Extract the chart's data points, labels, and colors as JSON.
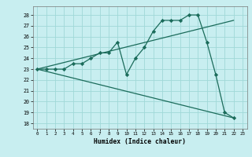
{
  "title": "",
  "xlabel": "Humidex (Indice chaleur)",
  "bg_color": "#c8eef0",
  "line_color": "#1a6b5a",
  "grid_color": "#a0d8d8",
  "xlim": [
    -0.5,
    23.5
  ],
  "ylim": [
    17.5,
    28.8
  ],
  "yticks": [
    18,
    19,
    20,
    21,
    22,
    23,
    24,
    25,
    26,
    27,
    28
  ],
  "xticks": [
    0,
    1,
    2,
    3,
    4,
    5,
    6,
    7,
    8,
    9,
    10,
    11,
    12,
    13,
    14,
    15,
    16,
    17,
    18,
    19,
    20,
    21,
    22,
    23
  ],
  "series0_x": [
    0,
    1,
    2,
    3,
    4,
    5,
    6,
    7,
    8,
    9,
    10,
    11,
    12,
    13,
    14,
    15,
    16,
    17,
    18,
    19,
    20,
    21,
    22
  ],
  "series0_y": [
    23,
    23,
    23,
    23,
    23.5,
    23.5,
    24,
    24.5,
    24.5,
    25.5,
    22.5,
    24,
    25,
    26.5,
    27.5,
    27.5,
    27.5,
    28,
    28,
    25.5,
    22.5,
    19,
    18.5
  ],
  "series1_x": [
    0,
    22
  ],
  "series1_y": [
    23,
    27.5
  ],
  "series2_x": [
    0,
    22
  ],
  "series2_y": [
    23,
    18.5
  ]
}
